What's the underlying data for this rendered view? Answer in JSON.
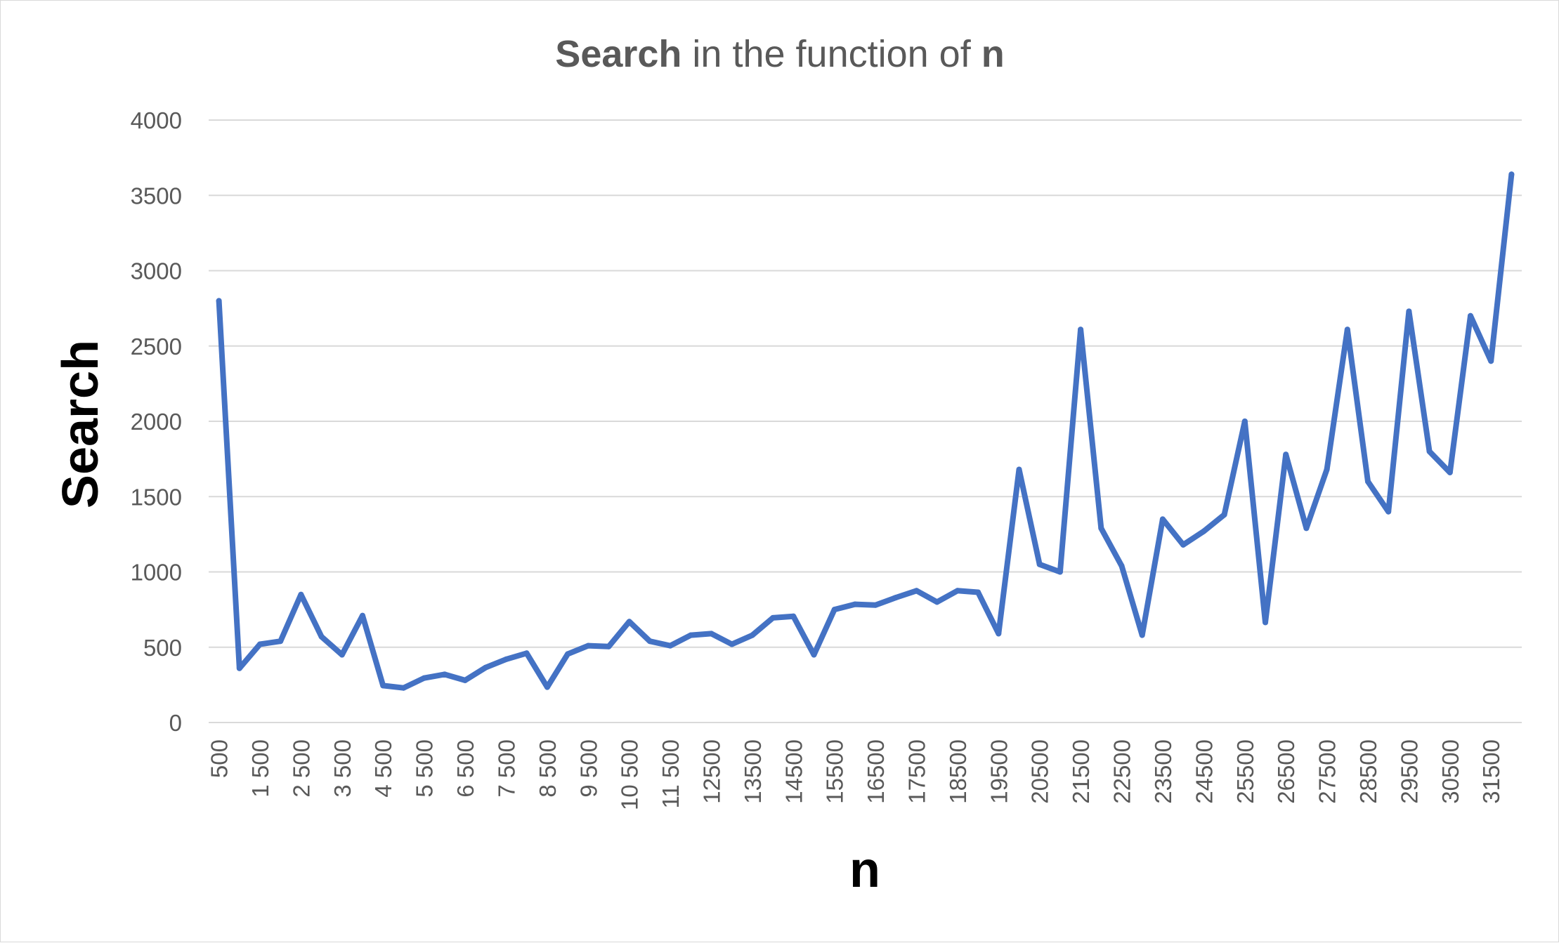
{
  "chart_data": {
    "type": "line",
    "title": "Search in the function of n",
    "title_parts": [
      {
        "text": "Search",
        "bold": true
      },
      {
        "text": " in the function of ",
        "bold": false
      },
      {
        "text": "n",
        "bold": true
      }
    ],
    "xlabel": "n",
    "ylabel": "Search",
    "ylim": [
      0,
      4000
    ],
    "yticks": [
      "0",
      "500",
      "1000",
      "1500",
      "2000",
      "2500",
      "3000",
      "3500",
      "4000"
    ],
    "grid": true,
    "legend": "none",
    "colors": {
      "series": "#4472C4",
      "grid": "#d9d9d9",
      "tick_text": "#595959",
      "axis_title": "#000000"
    },
    "x_tick_labels": [
      "500",
      "1 500",
      "2 500",
      "3 500",
      "4 500",
      "5 500",
      "6 500",
      "7 500",
      "8 500",
      "9 500",
      "10 500",
      "11 500",
      "12500",
      "13500",
      "14500",
      "15500",
      "16500",
      "17500",
      "18500",
      "19500",
      "20500",
      "21500",
      "22500",
      "23500",
      "24500",
      "25500",
      "26500",
      "27500",
      "28500",
      "29500",
      "30500",
      "31500"
    ],
    "x": [
      500,
      1000,
      1500,
      2000,
      2500,
      3000,
      3500,
      4000,
      4500,
      5000,
      5500,
      6000,
      6500,
      7000,
      7500,
      8000,
      8500,
      9000,
      9500,
      10000,
      10500,
      11000,
      11500,
      12000,
      12500,
      13000,
      13500,
      14000,
      14500,
      15000,
      15500,
      16000,
      16500,
      17000,
      17500,
      18000,
      18500,
      19000,
      19500,
      20000,
      20500,
      21000,
      21500,
      22000,
      22500,
      23000,
      23500,
      24000,
      24500,
      25000,
      25500,
      26000,
      26500,
      27000,
      27500,
      28000,
      28500,
      29000,
      29500,
      30000,
      30500,
      31000,
      31500,
      32000
    ],
    "series": [
      {
        "values": [
          2800,
          360,
          520,
          540,
          850,
          570,
          450,
          710,
          245,
          230,
          295,
          320,
          280,
          365,
          420,
          460,
          235,
          455,
          510,
          505,
          670,
          540,
          510,
          580,
          590,
          520,
          580,
          695,
          705,
          450,
          750,
          785,
          780,
          830,
          875,
          800,
          875,
          865,
          590,
          1680,
          1050,
          1000,
          2610,
          1290,
          1040,
          580,
          1350,
          1180,
          1270,
          1380,
          2000,
          665,
          1780,
          1290,
          1680,
          2610,
          1600,
          1400,
          2730,
          1800,
          1660,
          2700,
          2400,
          3640
        ]
      }
    ]
  }
}
